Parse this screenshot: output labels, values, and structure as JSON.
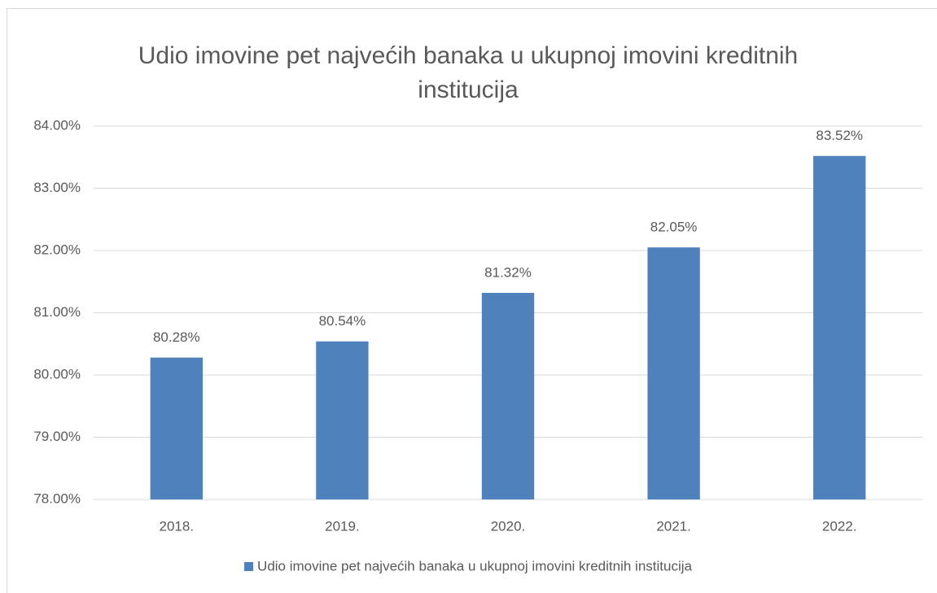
{
  "chart_data": {
    "type": "bar",
    "title": "Udio imovine pet najvećih banaka u ukupnoj imovini kreditnih institucija",
    "categories": [
      "2018.",
      "2019.",
      "2020.",
      "2021.",
      "2022."
    ],
    "series": [
      {
        "name": "Udio imovine pet najvećih banaka u ukupnoj imovini kreditnih institucija",
        "color": "#4f81bd",
        "values": [
          80.28,
          80.54,
          81.32,
          82.05,
          83.52
        ],
        "value_labels": [
          "80.28%",
          "80.54%",
          "81.32%",
          "82.05%",
          "83.52%"
        ]
      }
    ],
    "ylim": [
      78,
      84
    ],
    "yticks": [
      {
        "value": 78,
        "label": "78.00%"
      },
      {
        "value": 79,
        "label": "79.00%"
      },
      {
        "value": 80,
        "label": "80.00%"
      },
      {
        "value": 81,
        "label": "81.00%"
      },
      {
        "value": 82,
        "label": "82.00%"
      },
      {
        "value": 83,
        "label": "83.00%"
      },
      {
        "value": 84,
        "label": "84.00%"
      }
    ],
    "grid": true,
    "legend": "bottom"
  }
}
